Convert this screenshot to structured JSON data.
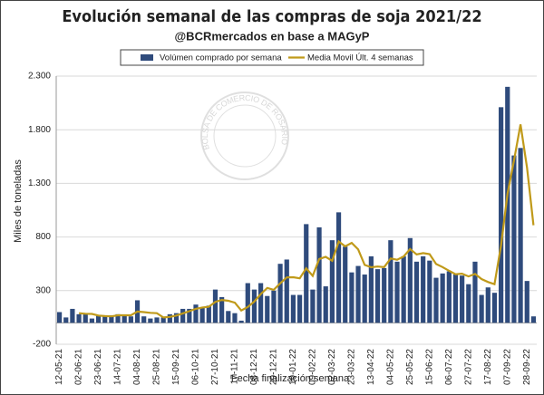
{
  "chart_data": {
    "type": "bar_line",
    "title": "Evolución semanal de las compras de soja 2021/22",
    "subtitle": "@BCRmercados en base a MAGyP",
    "watermark": "BOLSA DE COMERCIO DE ROSARIO",
    "x_label": "Fecha finalización semana",
    "y_label": "Miles de toneladas",
    "categories": [
      "12-05-21",
      null,
      null,
      "02-06-21",
      null,
      null,
      "23-06-21",
      null,
      null,
      "14-07-21",
      null,
      null,
      "04-08-21",
      null,
      null,
      "25-08-21",
      null,
      null,
      "15-09-21",
      null,
      null,
      "06-10-21",
      null,
      null,
      "27-10-21",
      null,
      null,
      "17-11-21",
      null,
      null,
      "08-12-21",
      null,
      null,
      "29-12-21",
      null,
      null,
      "19-01-22",
      null,
      null,
      "09-02-22",
      null,
      null,
      "02-03-22",
      null,
      null,
      "23-03-22",
      null,
      null,
      "13-04-22",
      null,
      null,
      "04-05-22",
      null,
      null,
      "25-05-22",
      null,
      null,
      "15-06-22",
      null,
      null,
      "06-07-22",
      null,
      null,
      "27-07-22",
      null,
      null,
      "17-08-22",
      null,
      null,
      "07-09-22",
      null,
      null,
      "28-09-22",
      null
    ],
    "series": [
      {
        "name": "Volúmen comprado por semana",
        "kind": "bar",
        "color": "#2f4b7c",
        "values": [
          100,
          50,
          130,
          80,
          80,
          40,
          70,
          60,
          70,
          80,
          70,
          60,
          210,
          60,
          40,
          50,
          50,
          80,
          90,
          130,
          130,
          170,
          140,
          160,
          310,
          240,
          110,
          90,
          20,
          370,
          310,
          370,
          250,
          300,
          550,
          590,
          260,
          260,
          920,
          310,
          890,
          340,
          770,
          1030,
          710,
          470,
          530,
          450,
          620,
          500,
          510,
          770,
          570,
          620,
          790,
          570,
          620,
          580,
          420,
          460,
          480,
          450,
          440,
          360,
          570,
          260,
          330,
          280,
          2010,
          2200,
          1560,
          1630,
          390,
          60
        ]
      },
      {
        "name": "Media Movil Últ. 4 semanas",
        "kind": "line",
        "color": "#c09a1a",
        "values": [
          null,
          null,
          null,
          90,
          85,
          83,
          68,
          63,
          60,
          70,
          70,
          70,
          105,
          100,
          93,
          90,
          50,
          55,
          68,
          88,
          108,
          130,
          143,
          150,
          195,
          213,
          205,
          188,
          115,
          148,
          198,
          268,
          325,
          308,
          368,
          423,
          425,
          415,
          508,
          438,
          595,
          615,
          578,
          758,
          713,
          745,
          685,
          540,
          518,
          525,
          520,
          600,
          588,
          618,
          688,
          638,
          650,
          640,
          548,
          520,
          485,
          453,
          458,
          433,
          455,
          408,
          380,
          360,
          720,
          1205,
          1513,
          1850,
          1445,
          910
        ]
      }
    ],
    "ylim": [
      -200,
      2300
    ],
    "yticks": [
      -200,
      300,
      800,
      {
        "value": 1300,
        "label": "1.300"
      },
      {
        "value": 1800,
        "label": "1.800"
      },
      {
        "value": 2300,
        "label": "2.300"
      }
    ],
    "grid": true
  }
}
